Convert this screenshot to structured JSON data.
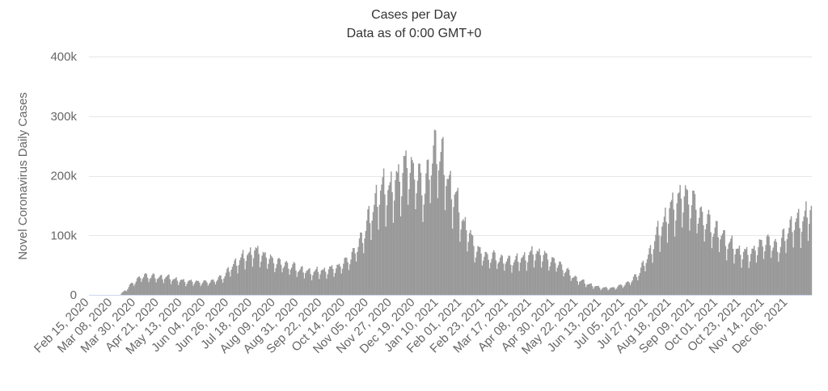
{
  "chart_data": {
    "type": "bar",
    "title": "Cases per Day",
    "subtitle": "Data as of 0:00 GMT+0",
    "ylabel": "Novel Coronavirus Daily Cases",
    "xlabel": "",
    "ylim": [
      0,
      400000
    ],
    "y_ticks": [
      0,
      100000,
      200000,
      300000,
      400000
    ],
    "y_tick_labels": [
      "0",
      "100k",
      "200k",
      "300k",
      "400k"
    ],
    "x_start": "2020-02-15",
    "x_end": "2021-12-28",
    "x_tick_labels": [
      "Feb 15, 2020",
      "Mar 08, 2020",
      "Mar 30, 2020",
      "Apr 21, 2020",
      "May 13, 2020",
      "Jun 04, 2020",
      "Jun 26, 2020",
      "Jul 18, 2020",
      "Aug 09, 2020",
      "Aug 31, 2020",
      "Sep 22, 2020",
      "Oct 14, 2020",
      "Nov 05, 2020",
      "Nov 27, 2020",
      "Dec 19, 2020",
      "Jan 10, 2021",
      "Feb 01, 2021",
      "Feb 23, 2021",
      "Mar 17, 2021",
      "Apr 08, 2021",
      "Apr 30, 2021",
      "May 22, 2021",
      "Jun 13, 2021",
      "Jul 05, 2021",
      "Jul 27, 2021",
      "Aug 18, 2021",
      "Sep 09, 2021",
      "Oct 01, 2021",
      "Oct 23, 2021",
      "Nov 14, 2021",
      "Dec 06, 2021"
    ],
    "series": [
      {
        "name": "",
        "color": "#999999",
        "points": [
          [
            "2020-02-15",
            0
          ],
          [
            "2020-03-01",
            0
          ],
          [
            "2020-03-15",
            0
          ],
          [
            "2020-03-17",
            4000
          ],
          [
            "2020-03-21",
            9000
          ],
          [
            "2020-03-25",
            17000
          ],
          [
            "2020-03-30",
            24000
          ],
          [
            "2020-04-03",
            30000
          ],
          [
            "2020-04-10",
            32000
          ],
          [
            "2020-04-20",
            29000
          ],
          [
            "2020-04-26",
            30000
          ],
          [
            "2020-05-03",
            27000
          ],
          [
            "2020-05-13",
            23000
          ],
          [
            "2020-05-24",
            22000
          ],
          [
            "2020-06-04",
            21000
          ],
          [
            "2020-06-12",
            24000
          ],
          [
            "2020-06-20",
            30000
          ],
          [
            "2020-06-26",
            42000
          ],
          [
            "2020-07-03",
            55000
          ],
          [
            "2020-07-10",
            63000
          ],
          [
            "2020-07-18",
            72000
          ],
          [
            "2020-07-25",
            70000
          ],
          [
            "2020-08-01",
            62000
          ],
          [
            "2020-08-09",
            55000
          ],
          [
            "2020-08-20",
            50000
          ],
          [
            "2020-08-31",
            43000
          ],
          [
            "2020-09-10",
            38000
          ],
          [
            "2020-09-22",
            40000
          ],
          [
            "2020-10-01",
            43000
          ],
          [
            "2020-10-08",
            48000
          ],
          [
            "2020-10-14",
            55000
          ],
          [
            "2020-10-22",
            70000
          ],
          [
            "2020-10-29",
            95000
          ],
          [
            "2020-11-05",
            125000
          ],
          [
            "2020-11-12",
            160000
          ],
          [
            "2020-11-20",
            180000
          ],
          [
            "2020-11-27",
            175000
          ],
          [
            "2020-12-04",
            200000
          ],
          [
            "2020-12-12",
            215000
          ],
          [
            "2020-12-19",
            205000
          ],
          [
            "2020-12-26",
            175000
          ],
          [
            "2021-01-02",
            215000
          ],
          [
            "2021-01-08",
            250000
          ],
          [
            "2021-01-14",
            220000
          ],
          [
            "2021-01-20",
            185000
          ],
          [
            "2021-01-27",
            155000
          ],
          [
            "2021-02-01",
            125000
          ],
          [
            "2021-02-08",
            100000
          ],
          [
            "2021-02-15",
            75000
          ],
          [
            "2021-02-23",
            65000
          ],
          [
            "2021-03-03",
            63000
          ],
          [
            "2021-03-17",
            56000
          ],
          [
            "2021-03-25",
            58000
          ],
          [
            "2021-04-01",
            62000
          ],
          [
            "2021-04-08",
            68000
          ],
          [
            "2021-04-15",
            70000
          ],
          [
            "2021-04-22",
            62000
          ],
          [
            "2021-04-30",
            55000
          ],
          [
            "2021-05-08",
            45000
          ],
          [
            "2021-05-15",
            33000
          ],
          [
            "2021-05-22",
            25000
          ],
          [
            "2021-05-29",
            20000
          ],
          [
            "2021-06-05",
            15000
          ],
          [
            "2021-06-13",
            12000
          ],
          [
            "2021-06-20",
            11000
          ],
          [
            "2021-06-27",
            13000
          ],
          [
            "2021-07-05",
            18000
          ],
          [
            "2021-07-12",
            25000
          ],
          [
            "2021-07-19",
            40000
          ],
          [
            "2021-07-27",
            65000
          ],
          [
            "2021-08-03",
            95000
          ],
          [
            "2021-08-10",
            120000
          ],
          [
            "2021-08-18",
            145000
          ],
          [
            "2021-08-25",
            160000
          ],
          [
            "2021-09-01",
            165000
          ],
          [
            "2021-09-09",
            150000
          ],
          [
            "2021-09-16",
            130000
          ],
          [
            "2021-09-23",
            118000
          ],
          [
            "2021-10-01",
            105000
          ],
          [
            "2021-10-08",
            92000
          ],
          [
            "2021-10-15",
            80000
          ],
          [
            "2021-10-23",
            70000
          ],
          [
            "2021-10-30",
            68000
          ],
          [
            "2021-11-07",
            78000
          ],
          [
            "2021-11-14",
            90000
          ],
          [
            "2021-11-21",
            85000
          ],
          [
            "2021-11-28",
            80000
          ],
          [
            "2021-12-06",
            110000
          ],
          [
            "2021-12-13",
            120000
          ],
          [
            "2021-12-20",
            125000
          ],
          [
            "2021-12-28",
            140000
          ]
        ]
      }
    ],
    "grid": true,
    "legend": "none"
  }
}
